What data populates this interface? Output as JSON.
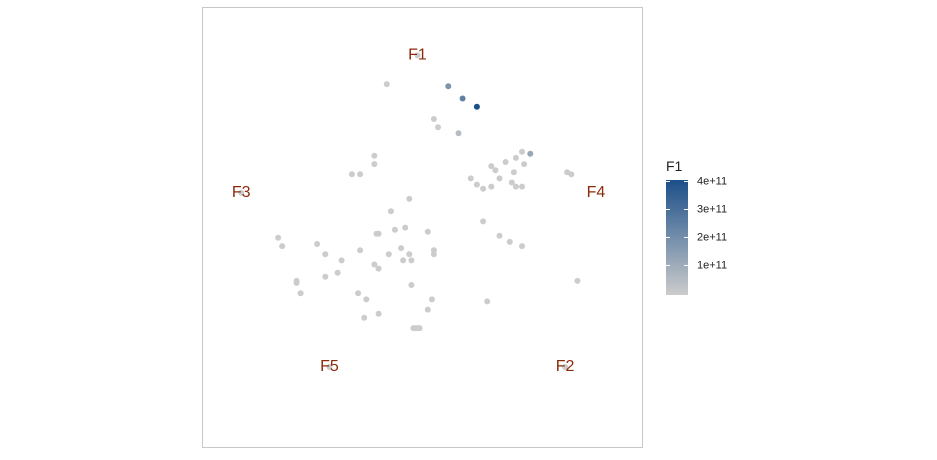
{
  "chart_data": {
    "type": "scatter",
    "title": "",
    "xlabel": "",
    "ylabel": "",
    "xlim": [
      -1,
      1
    ],
    "ylim": [
      -1,
      1
    ],
    "grid": false,
    "anchors": [
      {
        "label": "F1",
        "x": 0.0,
        "y": 0.82
      },
      {
        "label": "F2",
        "x": 0.72,
        "y": -0.7
      },
      {
        "label": "F3",
        "x": -0.86,
        "y": 0.15
      },
      {
        "label": "F4",
        "x": 0.87,
        "y": 0.15
      },
      {
        "label": "F5",
        "x": -0.43,
        "y": -0.7
      }
    ],
    "color_scale": {
      "title": "F1",
      "min": 0,
      "max": 400000000000.0,
      "low_color": "#cccccc",
      "high_color": "#1b4f88",
      "ticks": [
        {
          "value": 100000000000.0,
          "label": "1e+11"
        },
        {
          "value": 200000000000.0,
          "label": "2e+11"
        },
        {
          "value": 300000000000.0,
          "label": "3e+11"
        },
        {
          "value": 400000000000.0,
          "label": "4e+11"
        }
      ]
    },
    "points": [
      {
        "x": -0.15,
        "y": 0.68,
        "f1": 0
      },
      {
        "x": 0.15,
        "y": 0.67,
        "f1": 180000000000.0
      },
      {
        "x": 0.22,
        "y": 0.61,
        "f1": 240000000000.0
      },
      {
        "x": 0.29,
        "y": 0.57,
        "f1": 400000000000.0
      },
      {
        "x": 0.08,
        "y": 0.51,
        "f1": 0
      },
      {
        "x": 0.1,
        "y": 0.47,
        "f1": 0
      },
      {
        "x": 0.2,
        "y": 0.44,
        "f1": 50000000000.0
      },
      {
        "x": -0.21,
        "y": 0.33,
        "f1": 0
      },
      {
        "x": -0.21,
        "y": 0.29,
        "f1": 0
      },
      {
        "x": -0.28,
        "y": 0.24,
        "f1": 0
      },
      {
        "x": -0.32,
        "y": 0.24,
        "f1": 0
      },
      {
        "x": 0.51,
        "y": 0.35,
        "f1": 0
      },
      {
        "x": 0.55,
        "y": 0.34,
        "f1": 120000000000.0
      },
      {
        "x": 0.48,
        "y": 0.32,
        "f1": 0
      },
      {
        "x": 0.43,
        "y": 0.3,
        "f1": 0
      },
      {
        "x": 0.52,
        "y": 0.29,
        "f1": 0
      },
      {
        "x": 0.36,
        "y": 0.28,
        "f1": 0
      },
      {
        "x": 0.38,
        "y": 0.26,
        "f1": 0
      },
      {
        "x": 0.47,
        "y": 0.25,
        "f1": 0
      },
      {
        "x": 0.73,
        "y": 0.25,
        "f1": 0
      },
      {
        "x": 0.75,
        "y": 0.24,
        "f1": 0
      },
      {
        "x": 0.26,
        "y": 0.22,
        "f1": 0
      },
      {
        "x": 0.4,
        "y": 0.22,
        "f1": 0
      },
      {
        "x": 0.46,
        "y": 0.2,
        "f1": 0
      },
      {
        "x": 0.29,
        "y": 0.19,
        "f1": 0
      },
      {
        "x": 0.36,
        "y": 0.18,
        "f1": 0
      },
      {
        "x": 0.48,
        "y": 0.18,
        "f1": 0
      },
      {
        "x": 0.51,
        "y": 0.18,
        "f1": 0
      },
      {
        "x": 0.32,
        "y": 0.17,
        "f1": 0
      },
      {
        "x": -0.04,
        "y": 0.12,
        "f1": 0
      },
      {
        "x": -0.13,
        "y": 0.06,
        "f1": 0
      },
      {
        "x": 0.32,
        "y": 0.01,
        "f1": 0
      },
      {
        "x": -0.06,
        "y": -0.02,
        "f1": 0
      },
      {
        "x": -0.11,
        "y": -0.03,
        "f1": 0
      },
      {
        "x": 0.05,
        "y": -0.04,
        "f1": 0
      },
      {
        "x": -0.2,
        "y": -0.05,
        "f1": 0
      },
      {
        "x": -0.19,
        "y": -0.05,
        "f1": 0
      },
      {
        "x": 0.4,
        "y": -0.06,
        "f1": 0
      },
      {
        "x": -0.68,
        "y": -0.07,
        "f1": 0
      },
      {
        "x": 0.45,
        "y": -0.09,
        "f1": 0
      },
      {
        "x": -0.49,
        "y": -0.1,
        "f1": 0
      },
      {
        "x": -0.66,
        "y": -0.11,
        "f1": 0
      },
      {
        "x": 0.51,
        "y": -0.11,
        "f1": 0
      },
      {
        "x": -0.08,
        "y": -0.12,
        "f1": 0
      },
      {
        "x": -0.28,
        "y": -0.13,
        "f1": 0
      },
      {
        "x": 0.08,
        "y": -0.13,
        "f1": 0
      },
      {
        "x": -0.45,
        "y": -0.15,
        "f1": 0
      },
      {
        "x": -0.14,
        "y": -0.15,
        "f1": 0
      },
      {
        "x": -0.04,
        "y": -0.15,
        "f1": 0
      },
      {
        "x": 0.08,
        "y": -0.15,
        "f1": 0
      },
      {
        "x": -0.37,
        "y": -0.18,
        "f1": 0
      },
      {
        "x": -0.07,
        "y": -0.18,
        "f1": 0
      },
      {
        "x": -0.03,
        "y": -0.18,
        "f1": 0
      },
      {
        "x": -0.21,
        "y": -0.2,
        "f1": 0
      },
      {
        "x": -0.19,
        "y": -0.22,
        "f1": 0
      },
      {
        "x": -0.39,
        "y": -0.24,
        "f1": 0
      },
      {
        "x": -0.45,
        "y": -0.26,
        "f1": 0
      },
      {
        "x": -0.59,
        "y": -0.28,
        "f1": 0
      },
      {
        "x": -0.59,
        "y": -0.29,
        "f1": 0
      },
      {
        "x": 0.78,
        "y": -0.28,
        "f1": 0
      },
      {
        "x": -0.03,
        "y": -0.3,
        "f1": 0
      },
      {
        "x": -0.57,
        "y": -0.34,
        "f1": 0
      },
      {
        "x": -0.29,
        "y": -0.34,
        "f1": 0
      },
      {
        "x": -0.25,
        "y": -0.37,
        "f1": 0
      },
      {
        "x": 0.07,
        "y": -0.37,
        "f1": 0
      },
      {
        "x": 0.34,
        "y": -0.38,
        "f1": 0
      },
      {
        "x": 0.05,
        "y": -0.42,
        "f1": 0
      },
      {
        "x": -0.19,
        "y": -0.44,
        "f1": 0
      },
      {
        "x": -0.26,
        "y": -0.46,
        "f1": 0
      },
      {
        "x": -0.02,
        "y": -0.51,
        "f1": 0
      },
      {
        "x": -0.01,
        "y": -0.51,
        "f1": 0
      },
      {
        "x": 0.0,
        "y": -0.51,
        "f1": 0
      },
      {
        "x": 0.01,
        "y": -0.51,
        "f1": 0
      },
      {
        "x": -0.43,
        "y": -0.7,
        "f1": 0
      },
      {
        "x": 0.72,
        "y": -0.7,
        "f1": 0
      },
      {
        "x": -0.86,
        "y": 0.15,
        "f1": 0
      },
      {
        "x": 0.0,
        "y": 0.82,
        "f1": 0
      }
    ]
  }
}
